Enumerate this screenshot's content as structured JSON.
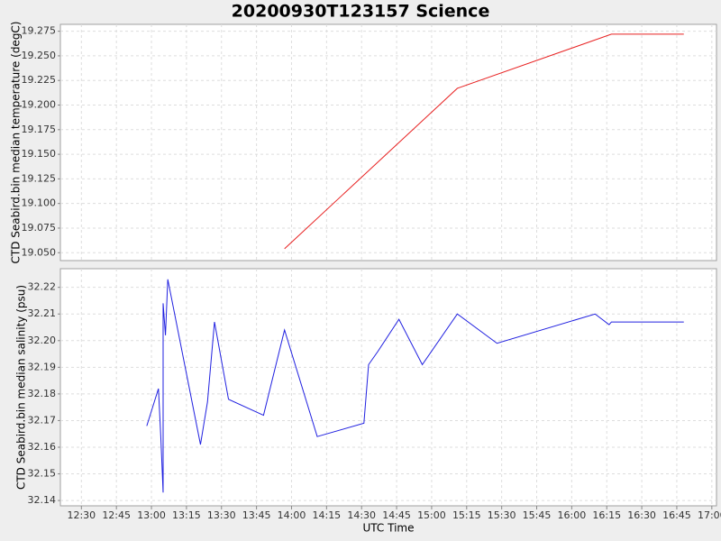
{
  "chart_data": [
    {
      "type": "line",
      "title": "20200930T123157 Science",
      "ylabel": "CTD Seabird.bin median temperature (degC)",
      "ylim": [
        19.042,
        19.282
      ],
      "yticks": [
        {
          "value": 19.05,
          "label": "19.050"
        },
        19.075,
        {
          "value": 19.1,
          "label": "19.100"
        },
        19.125,
        {
          "value": 19.15,
          "label": "19.150"
        },
        19.175,
        {
          "value": 19.2,
          "label": "19.200"
        },
        19.225,
        {
          "value": 19.25,
          "label": "19.250"
        },
        19.275
      ],
      "grid": true,
      "color": "#e82020",
      "x": [
        "13:57",
        "15:11",
        "16:17",
        "16:48"
      ],
      "values": [
        19.054,
        19.217,
        19.272,
        19.272
      ]
    },
    {
      "type": "line",
      "ylabel": "CTD Seabird.bin median salinity (psu)",
      "xlabel": "UTC Time",
      "xlim": [
        "12:21",
        "17:02"
      ],
      "xticks": [
        "12:30",
        "12:45",
        "13:00",
        "13:15",
        "13:30",
        "13:45",
        "14:00",
        "14:15",
        "14:30",
        "14:45",
        "15:00",
        "15:15",
        "15:30",
        "15:45",
        "16:00",
        "16:15",
        "16:30",
        "16:45",
        "17:00"
      ],
      "ylim": [
        32.138,
        32.227
      ],
      "yticks": [
        32.14,
        32.15,
        32.16,
        32.17,
        32.18,
        32.19,
        {
          "value": 32.2,
          "label": "32.20"
        },
        32.21,
        32.22
      ],
      "grid": true,
      "color": "#2020e0",
      "x": [
        "12:58",
        "13:03",
        "13:04",
        "13:05",
        "13:05",
        "13:06",
        "13:07",
        "13:21",
        "13:24",
        "13:27",
        "13:33",
        "13:48",
        "13:57",
        "14:11",
        "14:31",
        "14:33",
        "14:37",
        "14:46",
        "14:56",
        "15:11",
        "15:28",
        "16:10",
        "16:16",
        "16:17",
        "16:48"
      ],
      "values": [
        32.168,
        32.182,
        32.164,
        32.143,
        32.214,
        32.202,
        32.223,
        32.161,
        32.177,
        32.207,
        32.178,
        32.172,
        32.204,
        32.164,
        32.169,
        32.191,
        32.196,
        32.208,
        32.191,
        32.21,
        32.199,
        32.21,
        32.206,
        32.207,
        32.207
      ]
    }
  ]
}
